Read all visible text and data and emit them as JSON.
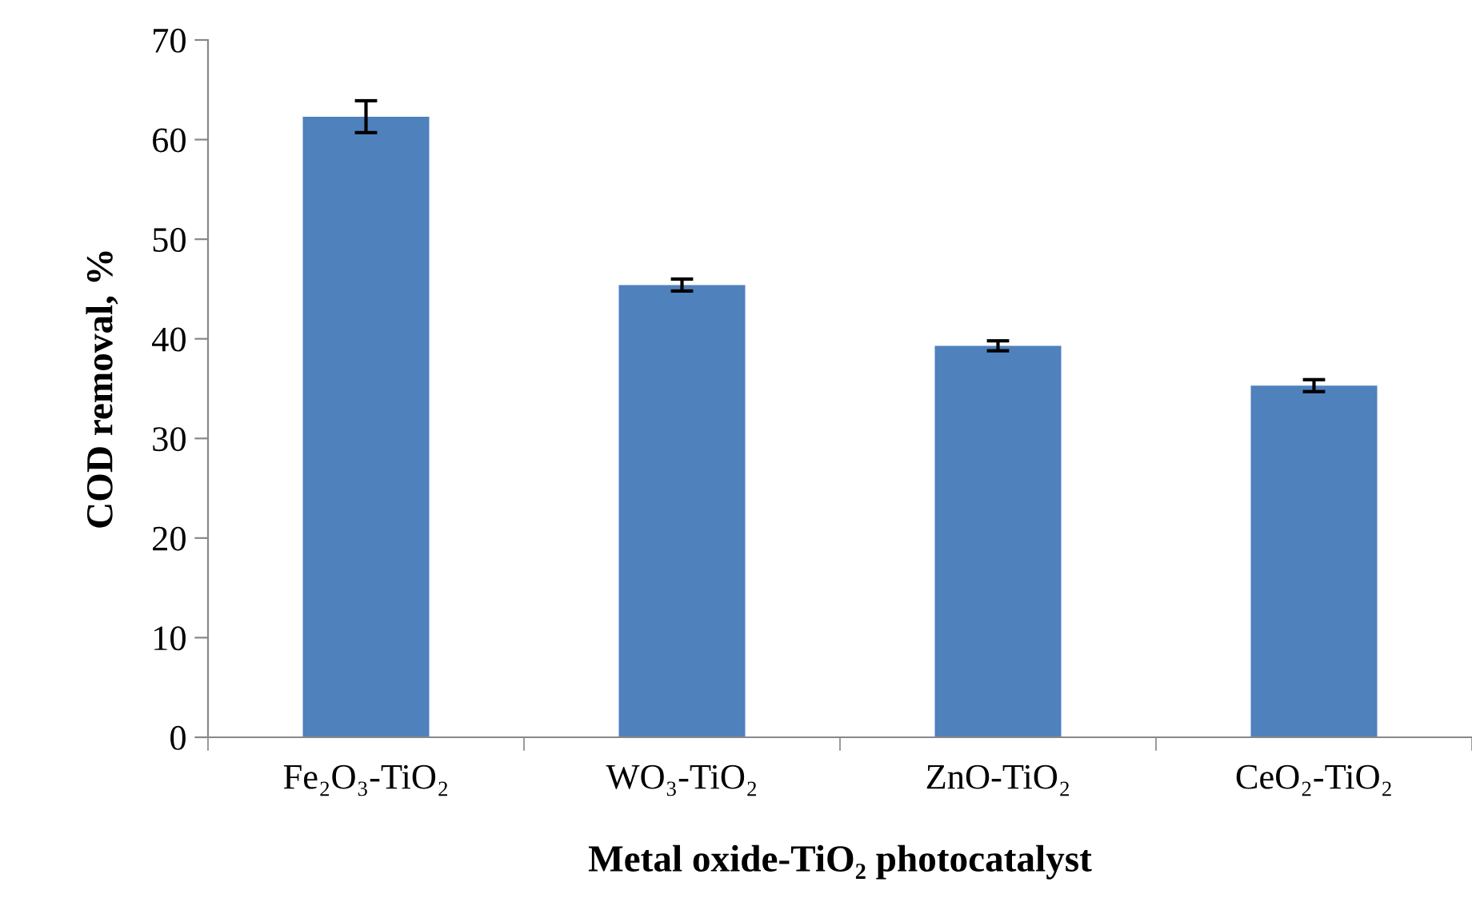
{
  "chart_data": {
    "type": "bar",
    "xlabel": "Metal oxide-TiO₂ photocatalyst",
    "ylabel": "COD removal, %",
    "categories": [
      "Fe₂O₃-TiO₂",
      "WO₃-TiO₂",
      "ZnO-TiO₂",
      "CeO₂-TiO₂"
    ],
    "values": [
      62.3,
      45.4,
      39.3,
      35.3
    ],
    "errors": [
      1.6,
      0.6,
      0.5,
      0.6
    ],
    "color": "#4f81bd",
    "ylim": [
      0,
      70
    ],
    "yticks": [
      0,
      10,
      20,
      30,
      40,
      50,
      60,
      70
    ],
    "grid": false,
    "legend": false
  }
}
